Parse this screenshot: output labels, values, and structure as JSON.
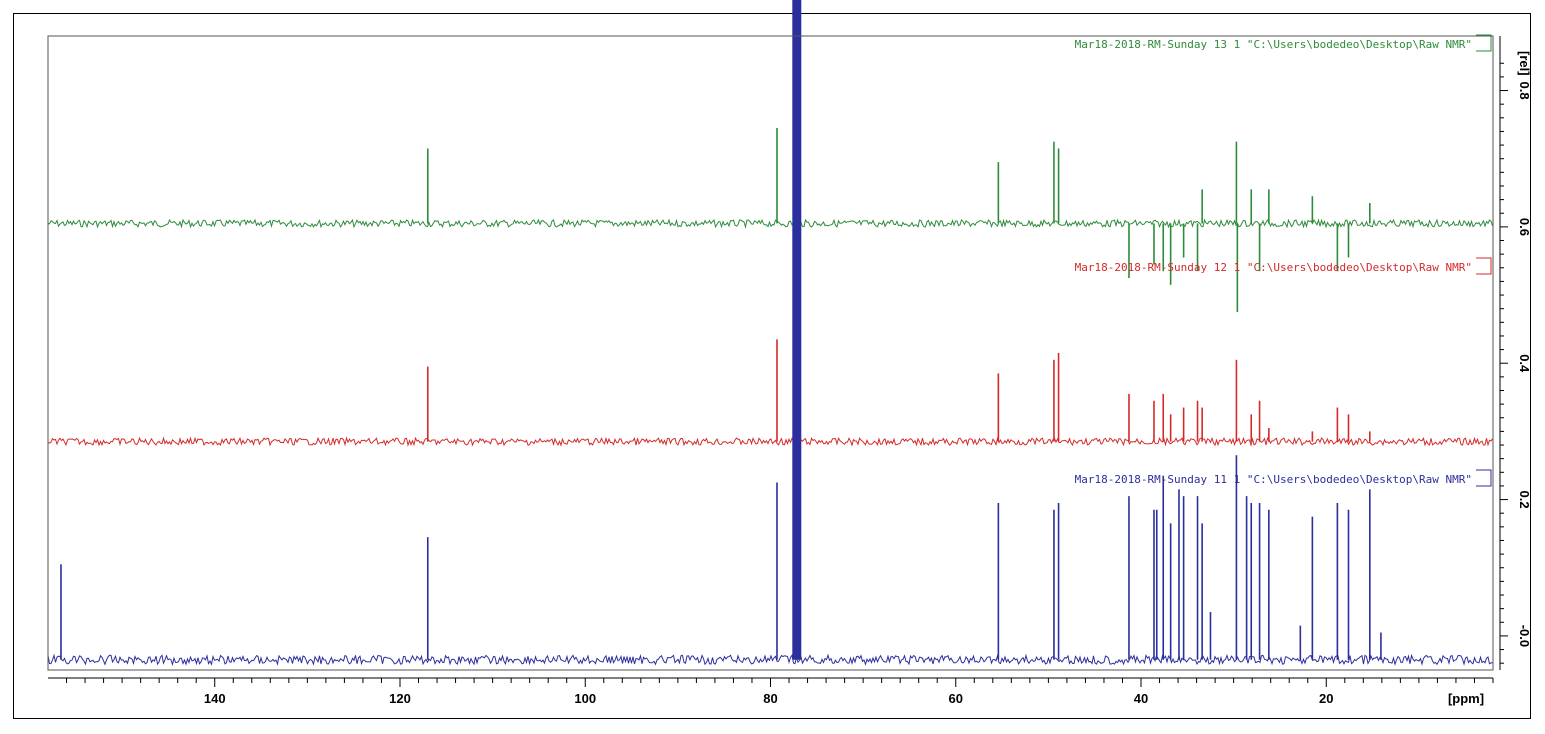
{
  "chart_data": {
    "type": "line",
    "title": "",
    "xlabel": "[ppm]",
    "ylabel": "[rel]",
    "xlim": [
      158,
      2
    ],
    "ylim": [
      -0.05,
      0.88
    ],
    "x_ticks": [
      140,
      120,
      100,
      80,
      60,
      40,
      20
    ],
    "y_ticks": [
      "-0.0",
      "0.2",
      "0.4",
      "0.6",
      "0.8"
    ],
    "y_tick_values": [
      0.0,
      0.2,
      0.4,
      0.6,
      0.8
    ],
    "series": [
      {
        "name": "Mar18-2018-RM-Sunday  13  1  \"C:\\Users\\bodedeo\\Desktop\\Raw NMR\"",
        "color": "#2e8b3a",
        "baseline": 0.605,
        "peaks": [
          {
            "ppm": 117.0,
            "height": 0.11
          },
          {
            "ppm": 79.3,
            "height": 0.14
          },
          {
            "ppm": 55.4,
            "height": 0.09
          },
          {
            "ppm": 49.4,
            "height": 0.12
          },
          {
            "ppm": 48.9,
            "height": 0.11
          },
          {
            "ppm": 41.3,
            "height": -0.08
          },
          {
            "ppm": 38.6,
            "height": -0.06
          },
          {
            "ppm": 37.6,
            "height": -0.07
          },
          {
            "ppm": 36.8,
            "height": -0.09
          },
          {
            "ppm": 35.4,
            "height": -0.05
          },
          {
            "ppm": 33.9,
            "height": -0.07
          },
          {
            "ppm": 33.4,
            "height": 0.05
          },
          {
            "ppm": 29.7,
            "height": 0.12
          },
          {
            "ppm": 29.6,
            "height": -0.13
          },
          {
            "ppm": 28.1,
            "height": 0.05
          },
          {
            "ppm": 27.2,
            "height": -0.07
          },
          {
            "ppm": 26.2,
            "height": 0.05
          },
          {
            "ppm": 21.5,
            "height": 0.04
          },
          {
            "ppm": 18.8,
            "height": -0.07
          },
          {
            "ppm": 17.6,
            "height": -0.05
          },
          {
            "ppm": 15.3,
            "height": 0.03
          }
        ]
      },
      {
        "name": "Mar18-2018-RM-Sunday  12  1  \"C:\\Users\\bodedeo\\Desktop\\Raw NMR\"",
        "color": "#d42a2a",
        "baseline": 0.285,
        "peaks": [
          {
            "ppm": 117.0,
            "height": 0.11
          },
          {
            "ppm": 79.3,
            "height": 0.15
          },
          {
            "ppm": 55.4,
            "height": 0.1
          },
          {
            "ppm": 49.4,
            "height": 0.12
          },
          {
            "ppm": 48.9,
            "height": 0.13
          },
          {
            "ppm": 41.3,
            "height": 0.07
          },
          {
            "ppm": 38.6,
            "height": 0.06
          },
          {
            "ppm": 37.6,
            "height": 0.07
          },
          {
            "ppm": 36.8,
            "height": 0.04
          },
          {
            "ppm": 35.4,
            "height": 0.05
          },
          {
            "ppm": 33.9,
            "height": 0.06
          },
          {
            "ppm": 33.4,
            "height": 0.05
          },
          {
            "ppm": 29.7,
            "height": 0.12
          },
          {
            "ppm": 28.1,
            "height": 0.04
          },
          {
            "ppm": 27.2,
            "height": 0.06
          },
          {
            "ppm": 26.2,
            "height": 0.02
          },
          {
            "ppm": 21.5,
            "height": 0.015
          },
          {
            "ppm": 18.8,
            "height": 0.05
          },
          {
            "ppm": 17.6,
            "height": 0.04
          },
          {
            "ppm": 15.3,
            "height": 0.015
          }
        ]
      },
      {
        "name": "Mar18-2018-RM-Sunday  11  1  \"C:\\Users\\bodedeo\\Desktop\\Raw NMR\"",
        "color": "#2b2f9e",
        "baseline": -0.035,
        "peaks": [
          {
            "ppm": 156.6,
            "height": 0.14
          },
          {
            "ppm": 117.0,
            "height": 0.18
          },
          {
            "ppm": 79.3,
            "height": 0.26
          },
          {
            "ppm": 77.16,
            "height": 1.0
          },
          {
            "ppm": 55.4,
            "height": 0.23
          },
          {
            "ppm": 49.4,
            "height": 0.22
          },
          {
            "ppm": 48.9,
            "height": 0.23
          },
          {
            "ppm": 41.3,
            "height": 0.24
          },
          {
            "ppm": 38.6,
            "height": 0.22
          },
          {
            "ppm": 38.3,
            "height": 0.22
          },
          {
            "ppm": 37.6,
            "height": 0.27
          },
          {
            "ppm": 36.8,
            "height": 0.2
          },
          {
            "ppm": 35.9,
            "height": 0.25
          },
          {
            "ppm": 35.4,
            "height": 0.24
          },
          {
            "ppm": 33.9,
            "height": 0.24
          },
          {
            "ppm": 33.4,
            "height": 0.2
          },
          {
            "ppm": 32.5,
            "height": 0.07
          },
          {
            "ppm": 29.7,
            "height": 0.3
          },
          {
            "ppm": 28.6,
            "height": 0.24
          },
          {
            "ppm": 28.1,
            "height": 0.23
          },
          {
            "ppm": 27.2,
            "height": 0.23
          },
          {
            "ppm": 26.2,
            "height": 0.22
          },
          {
            "ppm": 22.8,
            "height": 0.05
          },
          {
            "ppm": 21.5,
            "height": 0.21
          },
          {
            "ppm": 18.8,
            "height": 0.23
          },
          {
            "ppm": 17.6,
            "height": 0.22
          },
          {
            "ppm": 15.3,
            "height": 0.25
          },
          {
            "ppm": 14.1,
            "height": 0.04
          }
        ]
      }
    ],
    "grid": false,
    "legend": "top-right, one label per spectrum"
  }
}
